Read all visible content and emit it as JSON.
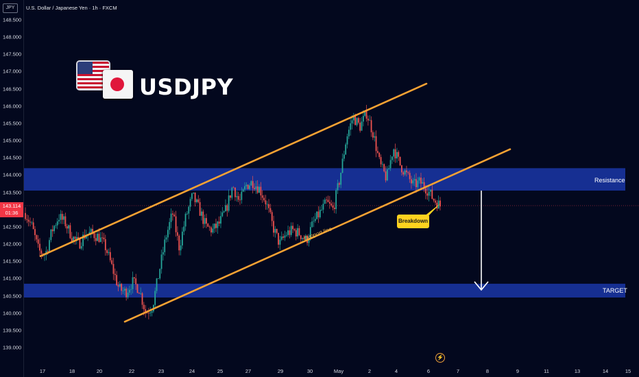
{
  "header": {
    "currency": "JPY",
    "title": "U.S. Dollar / Japanese Yen · 1h · FXCM"
  },
  "logo": {
    "symbol": "USDJPY",
    "flags": [
      "us-flag-icon",
      "japan-flag-icon"
    ]
  },
  "price_badge": {
    "price": "143.114",
    "countdown": "01:36",
    "color": "#f23645"
  },
  "annotations": {
    "resistance_label": "Resistance",
    "target_label": "TARGET",
    "breakdown_label": "Breakdown",
    "support_line_label": "Support line"
  },
  "icons": {
    "flash": "lightning-icon"
  },
  "colors": {
    "background": "#03081e",
    "zone": "#1f3fbf",
    "channel": "#f7a233",
    "candle_up": "#26a69a",
    "candle_down": "#ef5350",
    "price_line": "#f23645"
  },
  "chart_data": {
    "type": "candlestick",
    "title": "",
    "xlabel": "",
    "ylabel": "",
    "ylim": [
      138.85,
      148.75
    ],
    "y_ticks": [
      "148.500",
      "148.000",
      "147.500",
      "147.000",
      "146.500",
      "146.000",
      "145.500",
      "145.000",
      "144.500",
      "144.000",
      "143.500",
      "143.000",
      "142.500",
      "142.000",
      "141.500",
      "141.000",
      "140.500",
      "140.000",
      "139.500",
      "139.000"
    ],
    "x_ticks": [
      "17",
      "18",
      "20",
      "22",
      "23",
      "24",
      "25",
      "27",
      "29",
      "30",
      "May",
      "2",
      "4",
      "6",
      "7",
      "8",
      "9",
      "11",
      "13",
      "14",
      "15"
    ],
    "zones": [
      {
        "name": "Resistance",
        "low": 143.55,
        "high": 144.2
      },
      {
        "name": "TARGET",
        "low": 140.45,
        "high": 140.85
      }
    ],
    "channel": {
      "resistance_line": [
        [
          "17",
          141.65
        ],
        [
          "6+",
          146.65
        ]
      ],
      "support_line": [
        [
          "20",
          139.75
        ],
        [
          "8",
          144.75
        ]
      ]
    },
    "projection_arrow": {
      "from": 143.55,
      "to": 140.75
    },
    "candles_close_path": [
      142.9,
      142.5,
      141.8,
      141.7,
      142.4,
      142.8,
      142.6,
      142.2,
      142.0,
      142.3,
      142.3,
      142.2,
      141.9,
      141.3,
      140.7,
      140.6,
      140.9,
      140.7,
      140.0,
      140.2,
      141.2,
      142.2,
      142.9,
      141.9,
      142.8,
      143.4,
      143.0,
      142.5,
      142.4,
      142.6,
      143.0,
      143.7,
      143.2,
      143.7,
      143.8,
      143.6,
      143.2,
      142.5,
      142.0,
      142.3,
      142.4,
      142.3,
      142.1,
      142.6,
      142.9,
      143.2,
      143.0,
      143.9,
      145.1,
      145.7,
      145.4,
      145.8,
      145.2,
      144.3,
      143.9,
      144.8,
      144.3,
      144.0,
      143.7,
      143.8,
      143.6,
      143.3,
      143.11
    ]
  }
}
